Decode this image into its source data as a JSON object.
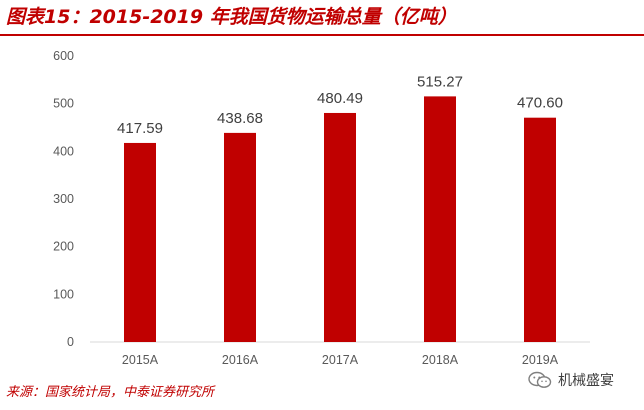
{
  "title": "图表15：2015-2019 年我国货物运输总量（亿吨）",
  "source": "来源：国家统计局，中泰证券研究所",
  "watermark": "机械盛宴",
  "colors": {
    "accent": "#c00000",
    "bar": "#c00000"
  },
  "chart_data": {
    "type": "bar",
    "categories": [
      "2015A",
      "2016A",
      "2017A",
      "2018A",
      "2019A"
    ],
    "values": [
      417.59,
      438.68,
      480.49,
      515.27,
      470.6
    ],
    "value_labels": [
      "417.59",
      "438.68",
      "480.49",
      "515.27",
      "470.60"
    ],
    "title": "2015-2019 年我国货物运输总量（亿吨）",
    "xlabel": "",
    "ylabel": "",
    "ylim": [
      0,
      600
    ],
    "yticks": [
      0,
      100,
      200,
      300,
      400,
      500,
      600
    ],
    "grid": false,
    "legend": "none"
  }
}
